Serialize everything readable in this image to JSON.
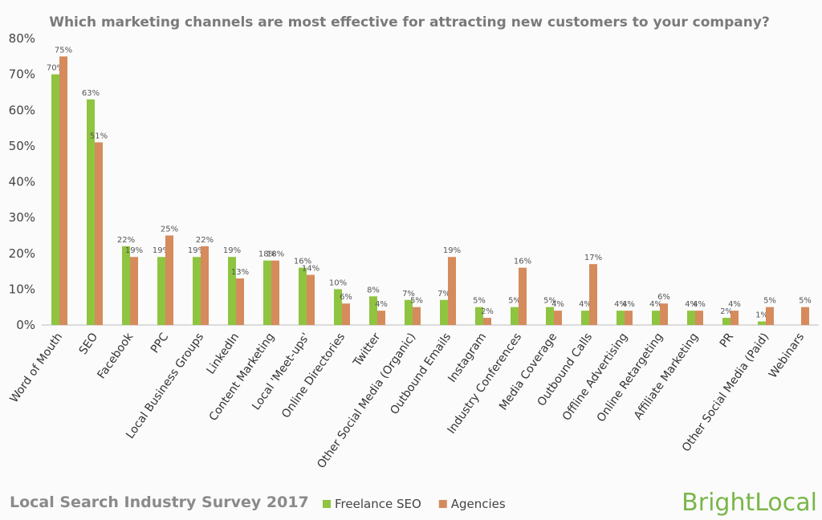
{
  "chart_data": {
    "type": "bar",
    "title": "Which marketing channels are most effective for attracting new customers to your company?",
    "categories": [
      "Word of Mouth",
      "SEO",
      "Facebook",
      "PPC",
      "Local Business Groups",
      "LinkedIn",
      "Content Marketing",
      "Local 'Meet-ups'",
      "Online Directories",
      "Twitter",
      "Other Social Media (Organic)",
      "Outbound Emails",
      "Instagram",
      "Industry Conferences",
      "Media Coverage",
      "Outbound Calls",
      "Offline Advertising",
      "Online Retargeting",
      "Affiliate Marketing",
      "PR",
      "Other Social Media (Paid)",
      "Webinars"
    ],
    "series": [
      {
        "name": "Freelance SEO",
        "color": "#8fc441",
        "values": [
          70,
          63,
          22,
          19,
          19,
          19,
          18,
          16,
          10,
          8,
          7,
          7,
          5,
          5,
          5,
          4,
          4,
          4,
          4,
          2,
          1,
          null
        ],
        "value_labels": [
          "70%",
          "63%",
          "22%",
          "19%",
          "19%",
          "19%",
          "18%",
          "16%",
          "10%",
          "8%",
          "7%",
          "7%",
          "5%",
          "5%",
          "5%",
          "4%",
          "4%",
          "4%",
          "4%",
          "2%",
          "1%",
          null
        ]
      },
      {
        "name": "Agencies",
        "color": "#d58b5c",
        "values": [
          75,
          51,
          19,
          25,
          22,
          13,
          18,
          14,
          6,
          4,
          5,
          19,
          2,
          16,
          4,
          17,
          4,
          6,
          4,
          4,
          5,
          5
        ],
        "value_labels": [
          "75%",
          "51%",
          "19%",
          "25%",
          "22%",
          "13%",
          "18%",
          "14%",
          "6%",
          "4%",
          "5%",
          "19%",
          "2%",
          "16%",
          "4%",
          "17%",
          "4%",
          "6%",
          "4%",
          "4%",
          "5%",
          "5%"
        ]
      }
    ],
    "ylim": [
      0,
      80
    ],
    "yticks": [
      {
        "value": 0,
        "label": "0%"
      },
      {
        "value": 10,
        "label": "10%"
      },
      {
        "value": 20,
        "label": "20%"
      },
      {
        "value": 30,
        "label": "30%"
      },
      {
        "value": 40,
        "label": "40%"
      },
      {
        "value": 50,
        "label": "50%"
      },
      {
        "value": 60,
        "label": "60%"
      },
      {
        "value": 70,
        "label": "70%"
      },
      {
        "value": 80,
        "label": "80%"
      }
    ],
    "grid": false,
    "legend": "bottom"
  },
  "footer": "Local Search Industry Survey 2017",
  "logo": "BrightLocal"
}
